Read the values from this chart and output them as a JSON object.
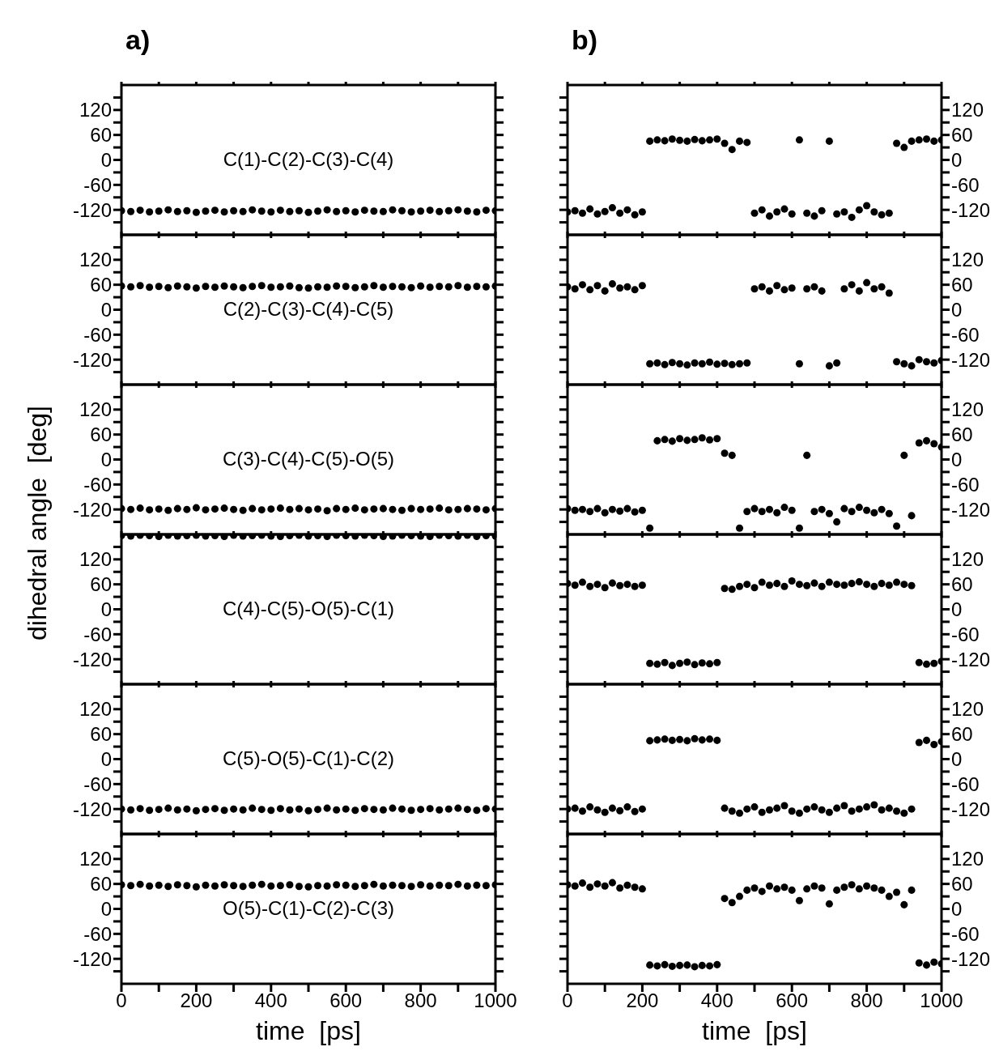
{
  "chart_data": [
    {
      "type": "scatter",
      "title": "a)",
      "annotations": [
        "C(1)-C(2)-C(3)-C(4)"
      ],
      "marker": "circle",
      "tick_labels": "y",
      "xlim": [
        0,
        1000
      ],
      "xticks": [
        0,
        {
          "value": 100,
          "label": null
        },
        200,
        {
          "value": 300,
          "label": null
        },
        400,
        {
          "value": 500,
          "label": null
        },
        600,
        {
          "value": 700,
          "label": null
        },
        800,
        {
          "value": 900,
          "label": null
        },
        1000
      ],
      "ylim": [
        -180,
        180
      ],
      "yticks": [
        {
          "value": -150,
          "label": null
        },
        -120,
        {
          "value": -90,
          "label": null
        },
        -60,
        {
          "value": -30,
          "label": null
        },
        0,
        {
          "value": 30,
          "label": null
        },
        60,
        {
          "value": 90,
          "label": null
        },
        120,
        {
          "value": 150,
          "label": null
        }
      ],
      "x": [
        0,
        25,
        50,
        75,
        100,
        125,
        150,
        175,
        200,
        225,
        250,
        275,
        300,
        325,
        350,
        375,
        400,
        425,
        450,
        475,
        500,
        525,
        550,
        575,
        600,
        625,
        650,
        675,
        700,
        725,
        750,
        775,
        800,
        825,
        850,
        875,
        900,
        925,
        950,
        975,
        1000
      ],
      "series": [
        {
          "color": "#000000",
          "values": [
            -122,
            -124,
            -121,
            -125,
            -123,
            -120,
            -124,
            -122,
            -126,
            -123,
            -121,
            -125,
            -122,
            -124,
            -120,
            -123,
            -125,
            -121,
            -124,
            -122,
            -126,
            -123,
            -120,
            -124,
            -122,
            -125,
            -121,
            -123,
            -124,
            -120,
            -122,
            -125,
            -123,
            -121,
            -124,
            -122,
            -120,
            -123,
            -125,
            -121,
            -122
          ]
        }
      ]
    },
    {
      "type": "scatter",
      "annotations": [
        "C(2)-C(3)-C(4)-C(5)"
      ],
      "marker": "circle",
      "tick_labels": "y",
      "xlim": [
        0,
        1000
      ],
      "xticks": [
        0,
        {
          "value": 100,
          "label": null
        },
        200,
        {
          "value": 300,
          "label": null
        },
        400,
        {
          "value": 500,
          "label": null
        },
        600,
        {
          "value": 700,
          "label": null
        },
        800,
        {
          "value": 900,
          "label": null
        },
        1000
      ],
      "ylim": [
        -180,
        180
      ],
      "yticks": [
        {
          "value": -150,
          "label": null
        },
        -120,
        {
          "value": -90,
          "label": null
        },
        -60,
        {
          "value": -30,
          "label": null
        },
        0,
        {
          "value": 30,
          "label": null
        },
        60,
        {
          "value": 90,
          "label": null
        },
        120,
        {
          "value": 150,
          "label": null
        }
      ],
      "x": [
        0,
        25,
        50,
        75,
        100,
        125,
        150,
        175,
        200,
        225,
        250,
        275,
        300,
        325,
        350,
        375,
        400,
        425,
        450,
        475,
        500,
        525,
        550,
        575,
        600,
        625,
        650,
        675,
        700,
        725,
        750,
        775,
        800,
        825,
        850,
        875,
        900,
        925,
        950,
        975,
        1000
      ],
      "series": [
        {
          "color": "#000000",
          "values": [
            57,
            55,
            58,
            54,
            56,
            53,
            57,
            55,
            52,
            56,
            54,
            57,
            55,
            53,
            56,
            58,
            54,
            55,
            57,
            53,
            52,
            55,
            54,
            57,
            56,
            53,
            55,
            58,
            54,
            56,
            55,
            53,
            57,
            54,
            56,
            55,
            58,
            54,
            56,
            55,
            57
          ]
        }
      ]
    },
    {
      "type": "scatter",
      "annotations": [
        "C(3)-C(4)-C(5)-O(5)"
      ],
      "marker": "circle",
      "tick_labels": "y",
      "xlim": [
        0,
        1000
      ],
      "xticks": [
        0,
        {
          "value": 100,
          "label": null
        },
        200,
        {
          "value": 300,
          "label": null
        },
        400,
        {
          "value": 500,
          "label": null
        },
        600,
        {
          "value": 700,
          "label": null
        },
        800,
        {
          "value": 900,
          "label": null
        },
        1000
      ],
      "ylim": [
        -180,
        180
      ],
      "yticks": [
        {
          "value": -150,
          "label": null
        },
        -120,
        {
          "value": -90,
          "label": null
        },
        -60,
        {
          "value": -30,
          "label": null
        },
        0,
        {
          "value": 30,
          "label": null
        },
        60,
        {
          "value": 90,
          "label": null
        },
        120,
        {
          "value": 150,
          "label": null
        }
      ],
      "ylabel": "dihedral angle  [deg]",
      "x": [
        0,
        25,
        50,
        75,
        100,
        125,
        150,
        175,
        200,
        225,
        250,
        275,
        300,
        325,
        350,
        375,
        400,
        425,
        450,
        475,
        500,
        525,
        550,
        575,
        600,
        625,
        650,
        675,
        700,
        725,
        750,
        775,
        800,
        825,
        850,
        875,
        900,
        925,
        950,
        975,
        1000
      ],
      "series": [
        {
          "color": "#000000",
          "values": [
            -118,
            -120,
            -117,
            -121,
            -119,
            -122,
            -118,
            -120,
            -116,
            -121,
            -119,
            -117,
            -120,
            -122,
            -118,
            -121,
            -119,
            -117,
            -120,
            -118,
            -121,
            -119,
            -123,
            -118,
            -120,
            -117,
            -121,
            -119,
            -118,
            -120,
            -122,
            -118,
            -120,
            -119,
            -117,
            -121,
            -120,
            -118,
            -119,
            -121,
            -118
          ]
        }
      ]
    },
    {
      "type": "scatter",
      "annotations": [
        "C(4)-C(5)-O(5)-C(1)"
      ],
      "marker": "circle",
      "tick_labels": "y",
      "xlim": [
        0,
        1000
      ],
      "xticks": [
        0,
        {
          "value": 100,
          "label": null
        },
        200,
        {
          "value": 300,
          "label": null
        },
        400,
        {
          "value": 500,
          "label": null
        },
        600,
        {
          "value": 700,
          "label": null
        },
        800,
        {
          "value": 900,
          "label": null
        },
        1000
      ],
      "ylim": [
        -180,
        180
      ],
      "yticks": [
        {
          "value": -150,
          "label": null
        },
        -120,
        {
          "value": -90,
          "label": null
        },
        -60,
        {
          "value": -30,
          "label": null
        },
        0,
        {
          "value": 30,
          "label": null
        },
        60,
        {
          "value": 90,
          "label": null
        },
        120,
        {
          "value": 150,
          "label": null
        }
      ],
      "x": [
        0,
        25,
        50,
        75,
        100,
        125,
        150,
        175,
        200,
        225,
        250,
        275,
        300,
        325,
        350,
        375,
        400,
        425,
        450,
        475,
        500,
        525,
        550,
        575,
        600,
        625,
        650,
        675,
        700,
        725,
        750,
        775,
        800,
        825,
        850,
        875,
        900,
        925,
        950,
        975,
        1000
      ],
      "series": [
        {
          "color": "#000000",
          "values": [
            177,
            176,
            178,
            177,
            175,
            178,
            176,
            177,
            178,
            176,
            177,
            175,
            178,
            176,
            177,
            178,
            176,
            175,
            177,
            178,
            176,
            177,
            175,
            178,
            177,
            176,
            178,
            177,
            175,
            176,
            178,
            177,
            176,
            175,
            178,
            177,
            176,
            178,
            175,
            177,
            176
          ]
        }
      ]
    },
    {
      "type": "scatter",
      "annotations": [
        "C(5)-O(5)-C(1)-C(2)"
      ],
      "marker": "circle",
      "tick_labels": "y",
      "xlim": [
        0,
        1000
      ],
      "xticks": [
        0,
        {
          "value": 100,
          "label": null
        },
        200,
        {
          "value": 300,
          "label": null
        },
        400,
        {
          "value": 500,
          "label": null
        },
        600,
        {
          "value": 700,
          "label": null
        },
        800,
        {
          "value": 900,
          "label": null
        },
        1000
      ],
      "ylim": [
        -180,
        180
      ],
      "yticks": [
        {
          "value": -150,
          "label": null
        },
        -120,
        {
          "value": -90,
          "label": null
        },
        -60,
        {
          "value": -30,
          "label": null
        },
        0,
        {
          "value": 30,
          "label": null
        },
        60,
        {
          "value": 90,
          "label": null
        },
        120,
        {
          "value": 150,
          "label": null
        }
      ],
      "x": [
        0,
        25,
        50,
        75,
        100,
        125,
        150,
        175,
        200,
        225,
        250,
        275,
        300,
        325,
        350,
        375,
        400,
        425,
        450,
        475,
        500,
        525,
        550,
        575,
        600,
        625,
        650,
        675,
        700,
        725,
        750,
        775,
        800,
        825,
        850,
        875,
        900,
        925,
        950,
        975,
        1000
      ],
      "series": [
        {
          "color": "#000000",
          "values": [
            -120,
            -122,
            -119,
            -123,
            -121,
            -118,
            -122,
            -120,
            -124,
            -121,
            -119,
            -123,
            -120,
            -122,
            -118,
            -121,
            -123,
            -119,
            -122,
            -120,
            -124,
            -121,
            -118,
            -122,
            -120,
            -123,
            -119,
            -121,
            -122,
            -118,
            -120,
            -123,
            -121,
            -119,
            -122,
            -120,
            -118,
            -121,
            -123,
            -119,
            -120
          ]
        }
      ]
    },
    {
      "type": "scatter",
      "annotations": [
        "O(5)-C(1)-C(2)-C(3)"
      ],
      "marker": "circle",
      "xlabel": "time  [ps]",
      "xlim": [
        0,
        1000
      ],
      "xticks": [
        0,
        {
          "value": 100,
          "label": null
        },
        200,
        {
          "value": 300,
          "label": null
        },
        400,
        {
          "value": 500,
          "label": null
        },
        600,
        {
          "value": 700,
          "label": null
        },
        800,
        {
          "value": 900,
          "label": null
        },
        1000
      ],
      "ylim": [
        -180,
        180
      ],
      "yticks": [
        {
          "value": -150,
          "label": null
        },
        -120,
        {
          "value": -90,
          "label": null
        },
        -60,
        {
          "value": -30,
          "label": null
        },
        0,
        {
          "value": 30,
          "label": null
        },
        60,
        {
          "value": 90,
          "label": null
        },
        120,
        {
          "value": 150,
          "label": null
        }
      ],
      "x": [
        0,
        25,
        50,
        75,
        100,
        125,
        150,
        175,
        200,
        225,
        250,
        275,
        300,
        325,
        350,
        375,
        400,
        425,
        450,
        475,
        500,
        525,
        550,
        575,
        600,
        625,
        650,
        675,
        700,
        725,
        750,
        775,
        800,
        825,
        850,
        875,
        900,
        925,
        950,
        975,
        1000
      ],
      "series": [
        {
          "color": "#000000",
          "values": [
            58,
            56,
            59,
            55,
            57,
            54,
            58,
            56,
            53,
            57,
            55,
            58,
            56,
            54,
            57,
            59,
            55,
            56,
            58,
            54,
            53,
            56,
            55,
            58,
            57,
            54,
            56,
            59,
            55,
            57,
            56,
            54,
            58,
            55,
            57,
            56,
            59,
            55,
            57,
            56,
            58
          ]
        }
      ]
    },
    {
      "type": "scatter",
      "title": "b)",
      "marker": "circle",
      "tick_labels": "y",
      "xlim": [
        0,
        1000
      ],
      "xticks": [
        0,
        {
          "value": 100,
          "label": null
        },
        200,
        {
          "value": 300,
          "label": null
        },
        400,
        {
          "value": 500,
          "label": null
        },
        600,
        {
          "value": 700,
          "label": null
        },
        800,
        {
          "value": 900,
          "label": null
        },
        1000
      ],
      "ylim": [
        -180,
        180
      ],
      "yticks": [
        {
          "value": -150,
          "label": null
        },
        -120,
        {
          "value": -90,
          "label": null
        },
        -60,
        {
          "value": -30,
          "label": null
        },
        0,
        {
          "value": 30,
          "label": null
        },
        60,
        {
          "value": 90,
          "label": null
        },
        120,
        {
          "value": 150,
          "label": null
        }
      ],
      "x": [
        0,
        20,
        40,
        60,
        80,
        100,
        120,
        140,
        160,
        180,
        200,
        220,
        240,
        260,
        280,
        300,
        320,
        340,
        360,
        380,
        400,
        420,
        440,
        460,
        480,
        500,
        520,
        540,
        560,
        580,
        600,
        620,
        640,
        660,
        680,
        700,
        720,
        740,
        760,
        780,
        800,
        820,
        840,
        860,
        880,
        900,
        920,
        940,
        960,
        980,
        1000
      ],
      "series": [
        {
          "color": "#000000",
          "values": [
            -125,
            -122,
            -128,
            -118,
            -130,
            -124,
            -115,
            -128,
            -120,
            -132,
            -125,
            45,
            48,
            46,
            50,
            47,
            45,
            49,
            46,
            48,
            50,
            40,
            25,
            45,
            42,
            -128,
            -120,
            -135,
            -125,
            -118,
            -130,
            48,
            -128,
            -135,
            -122,
            45,
            -130,
            -125,
            -138,
            -120,
            -110,
            -125,
            -132,
            -128,
            40,
            30,
            45,
            48,
            50,
            45,
            48
          ]
        }
      ]
    },
    {
      "type": "scatter",
      "marker": "circle",
      "tick_labels": "y",
      "xlim": [
        0,
        1000
      ],
      "xticks": [
        0,
        {
          "value": 100,
          "label": null
        },
        200,
        {
          "value": 300,
          "label": null
        },
        400,
        {
          "value": 500,
          "label": null
        },
        600,
        {
          "value": 700,
          "label": null
        },
        800,
        {
          "value": 900,
          "label": null
        },
        1000
      ],
      "ylim": [
        -180,
        180
      ],
      "yticks": [
        {
          "value": -150,
          "label": null
        },
        -120,
        {
          "value": -90,
          "label": null
        },
        -60,
        {
          "value": -30,
          "label": null
        },
        0,
        {
          "value": 30,
          "label": null
        },
        60,
        {
          "value": 90,
          "label": null
        },
        120,
        {
          "value": 150,
          "label": null
        }
      ],
      "x": [
        0,
        20,
        40,
        60,
        80,
        100,
        120,
        140,
        160,
        180,
        200,
        220,
        240,
        260,
        280,
        300,
        320,
        340,
        360,
        380,
        400,
        420,
        440,
        460,
        480,
        500,
        520,
        540,
        560,
        580,
        600,
        620,
        640,
        660,
        680,
        700,
        720,
        740,
        760,
        780,
        800,
        820,
        840,
        860,
        880,
        900,
        920,
        940,
        960,
        980,
        1000
      ],
      "series": [
        {
          "color": "#000000",
          "values": [
            55,
            50,
            60,
            48,
            58,
            45,
            62,
            52,
            55,
            48,
            58,
            -130,
            -128,
            -132,
            -127,
            -130,
            -133,
            -128,
            -130,
            -126,
            -131,
            -129,
            -132,
            -130,
            -128,
            50,
            55,
            45,
            58,
            48,
            52,
            -130,
            50,
            55,
            45,
            -135,
            -128,
            50,
            60,
            45,
            65,
            50,
            55,
            40,
            -125,
            -130,
            -135,
            -120,
            -125,
            -128,
            -122
          ]
        }
      ]
    },
    {
      "type": "scatter",
      "marker": "circle",
      "tick_labels": "y",
      "xlim": [
        0,
        1000
      ],
      "xticks": [
        0,
        {
          "value": 100,
          "label": null
        },
        200,
        {
          "value": 300,
          "label": null
        },
        400,
        {
          "value": 500,
          "label": null
        },
        600,
        {
          "value": 700,
          "label": null
        },
        800,
        {
          "value": 900,
          "label": null
        },
        1000
      ],
      "ylim": [
        -180,
        180
      ],
      "yticks": [
        {
          "value": -150,
          "label": null
        },
        -120,
        {
          "value": -90,
          "label": null
        },
        -60,
        {
          "value": -30,
          "label": null
        },
        0,
        {
          "value": 30,
          "label": null
        },
        60,
        {
          "value": 90,
          "label": null
        },
        120,
        {
          "value": 150,
          "label": null
        }
      ],
      "x": [
        0,
        20,
        40,
        60,
        80,
        100,
        120,
        140,
        160,
        180,
        200,
        220,
        240,
        260,
        280,
        300,
        320,
        340,
        360,
        380,
        400,
        420,
        440,
        460,
        480,
        500,
        520,
        540,
        560,
        580,
        600,
        620,
        640,
        660,
        680,
        700,
        720,
        740,
        760,
        780,
        800,
        820,
        840,
        860,
        880,
        900,
        920,
        940,
        960,
        980,
        1000
      ],
      "series": [
        {
          "color": "#000000",
          "values": [
            -118,
            -122,
            -120,
            -125,
            -118,
            -128,
            -120,
            -124,
            -118,
            -126,
            -122,
            -165,
            45,
            48,
            44,
            50,
            46,
            48,
            52,
            47,
            50,
            15,
            10,
            -165,
            -125,
            -118,
            -125,
            -120,
            -128,
            -115,
            -122,
            -165,
            10,
            -125,
            -120,
            -130,
            -150,
            -118,
            -125,
            -115,
            -122,
            -128,
            -120,
            -130,
            -160,
            10,
            -135,
            40,
            45,
            38,
            30
          ]
        }
      ]
    },
    {
      "type": "scatter",
      "marker": "circle",
      "tick_labels": "y",
      "xlim": [
        0,
        1000
      ],
      "xticks": [
        0,
        {
          "value": 100,
          "label": null
        },
        200,
        {
          "value": 300,
          "label": null
        },
        400,
        {
          "value": 500,
          "label": null
        },
        600,
        {
          "value": 700,
          "label": null
        },
        800,
        {
          "value": 900,
          "label": null
        },
        1000
      ],
      "ylim": [
        -180,
        180
      ],
      "yticks": [
        {
          "value": -150,
          "label": null
        },
        -120,
        {
          "value": -90,
          "label": null
        },
        -60,
        {
          "value": -30,
          "label": null
        },
        0,
        {
          "value": 30,
          "label": null
        },
        60,
        {
          "value": 90,
          "label": null
        },
        120,
        {
          "value": 150,
          "label": null
        }
      ],
      "x": [
        0,
        20,
        40,
        60,
        80,
        100,
        120,
        140,
        160,
        180,
        200,
        220,
        240,
        260,
        280,
        300,
        320,
        340,
        360,
        380,
        400,
        420,
        440,
        460,
        480,
        500,
        520,
        540,
        560,
        580,
        600,
        620,
        640,
        660,
        680,
        700,
        720,
        740,
        760,
        780,
        800,
        820,
        840,
        860,
        880,
        900,
        920,
        940,
        960,
        980,
        1000
      ],
      "series": [
        {
          "color": "#000000",
          "values": [
            62,
            58,
            65,
            55,
            60,
            52,
            63,
            57,
            60,
            55,
            58,
            -130,
            -132,
            -128,
            -135,
            -130,
            -127,
            -133,
            -129,
            -131,
            -128,
            50,
            48,
            55,
            60,
            52,
            65,
            58,
            62,
            55,
            68,
            60,
            57,
            63,
            55,
            65,
            60,
            58,
            62,
            66,
            60,
            55,
            62,
            58,
            65,
            60,
            57,
            -128,
            -132,
            -130,
            -125
          ]
        }
      ]
    },
    {
      "type": "scatter",
      "marker": "circle",
      "tick_labels": "y",
      "xlim": [
        0,
        1000
      ],
      "xticks": [
        0,
        {
          "value": 100,
          "label": null
        },
        200,
        {
          "value": 300,
          "label": null
        },
        400,
        {
          "value": 500,
          "label": null
        },
        600,
        {
          "value": 700,
          "label": null
        },
        800,
        {
          "value": 900,
          "label": null
        },
        1000
      ],
      "ylim": [
        -180,
        180
      ],
      "yticks": [
        {
          "value": -150,
          "label": null
        },
        -120,
        {
          "value": -90,
          "label": null
        },
        -60,
        {
          "value": -30,
          "label": null
        },
        0,
        {
          "value": 30,
          "label": null
        },
        60,
        {
          "value": 90,
          "label": null
        },
        120,
        {
          "value": 150,
          "label": null
        }
      ],
      "x": [
        0,
        20,
        40,
        60,
        80,
        100,
        120,
        140,
        160,
        180,
        200,
        220,
        240,
        260,
        280,
        300,
        320,
        340,
        360,
        380,
        400,
        420,
        440,
        460,
        480,
        500,
        520,
        540,
        560,
        580,
        600,
        620,
        640,
        660,
        680,
        700,
        720,
        740,
        760,
        780,
        800,
        820,
        840,
        860,
        880,
        900,
        920,
        940,
        960,
        980,
        1000
      ],
      "series": [
        {
          "color": "#000000",
          "values": [
            -120,
            -118,
            -125,
            -115,
            -122,
            -128,
            -118,
            -124,
            -115,
            -126,
            -120,
            44,
            46,
            48,
            45,
            47,
            44,
            49,
            46,
            48,
            45,
            -118,
            -125,
            -130,
            -120,
            -115,
            -128,
            -122,
            -118,
            -112,
            -125,
            -130,
            -120,
            -115,
            -122,
            -128,
            -118,
            -112,
            -125,
            -120,
            -115,
            -110,
            -122,
            -118,
            -125,
            -130,
            -120,
            40,
            45,
            35,
            42
          ]
        }
      ]
    },
    {
      "type": "scatter",
      "marker": "circle",
      "xlabel": "time  [ps]",
      "xlim": [
        0,
        1000
      ],
      "xticks": [
        0,
        {
          "value": 100,
          "label": null
        },
        200,
        {
          "value": 300,
          "label": null
        },
        400,
        {
          "value": 500,
          "label": null
        },
        600,
        {
          "value": 700,
          "label": null
        },
        800,
        {
          "value": 900,
          "label": null
        },
        1000
      ],
      "ylim": [
        -180,
        180
      ],
      "yticks": [
        {
          "value": -150,
          "label": null
        },
        -120,
        {
          "value": -90,
          "label": null
        },
        -60,
        {
          "value": -30,
          "label": null
        },
        0,
        {
          "value": 30,
          "label": null
        },
        60,
        {
          "value": 90,
          "label": null
        },
        120,
        {
          "value": 150,
          "label": null
        }
      ],
      "x": [
        0,
        20,
        40,
        60,
        80,
        100,
        120,
        140,
        160,
        180,
        200,
        220,
        240,
        260,
        280,
        300,
        320,
        340,
        360,
        380,
        400,
        420,
        440,
        460,
        480,
        500,
        520,
        540,
        560,
        580,
        600,
        620,
        640,
        660,
        680,
        700,
        720,
        740,
        760,
        780,
        800,
        820,
        840,
        860,
        880,
        900,
        920,
        940,
        960,
        980,
        1000
      ],
      "series": [
        {
          "color": "#000000",
          "values": [
            58,
            55,
            62,
            52,
            60,
            55,
            63,
            50,
            57,
            52,
            48,
            -135,
            -137,
            -134,
            -138,
            -136,
            -135,
            -139,
            -136,
            -137,
            -134,
            25,
            15,
            30,
            45,
            50,
            42,
            55,
            48,
            52,
            45,
            20,
            48,
            55,
            50,
            12,
            45,
            52,
            58,
            48,
            55,
            50,
            45,
            30,
            40,
            10,
            45,
            -130,
            -135,
            -128,
            -132
          ]
        }
      ]
    }
  ]
}
